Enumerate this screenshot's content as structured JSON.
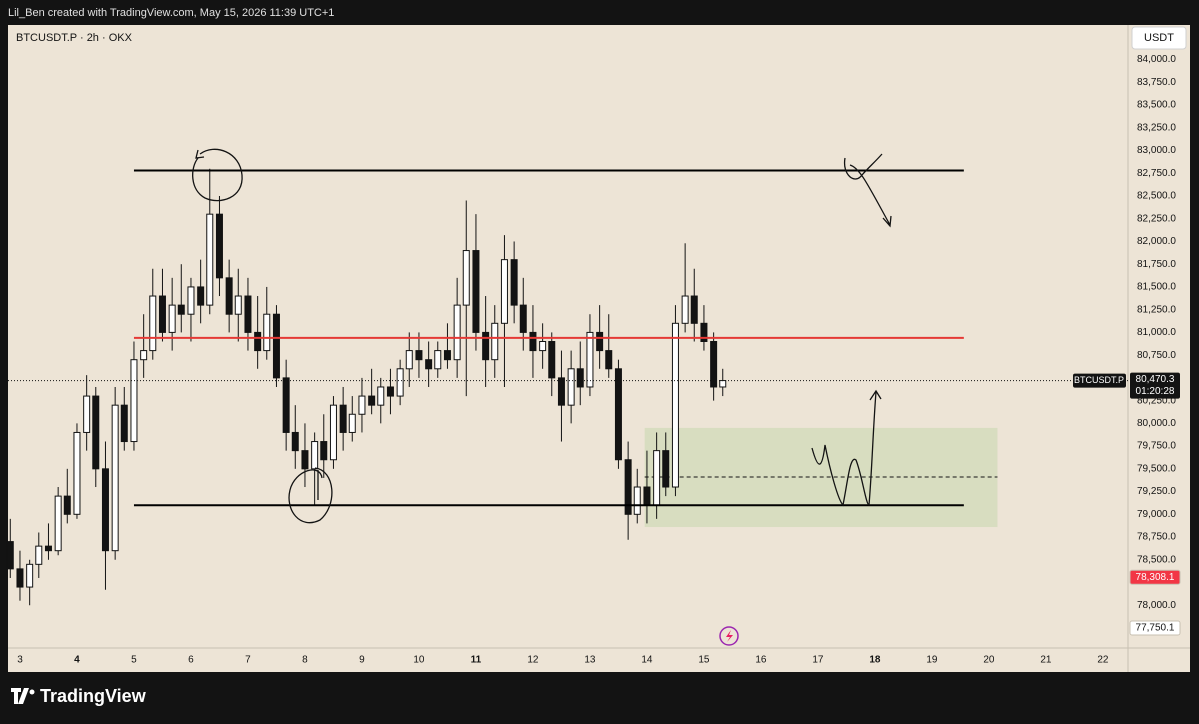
{
  "chart_data": {
    "type": "candlestick",
    "credit": "Lil_Ben created with TradingView.com, May 15, 2026 11:39 UTC+1",
    "symbol_label": "BTCUSDT.P · 2h · OKX",
    "currency": "USDT",
    "brand": "TradingView",
    "up_color": "#ffffff",
    "down_color": "#131313",
    "x": [
      2.83,
      3,
      3.17,
      3.33,
      3.5,
      3.67,
      3.83,
      4,
      4.17,
      4.33,
      4.5,
      4.67,
      4.83,
      5,
      5.17,
      5.33,
      5.5,
      5.67,
      5.83,
      6,
      6.17,
      6.33,
      6.5,
      6.67,
      6.83,
      7,
      7.17,
      7.33,
      7.5,
      7.67,
      7.83,
      8,
      8.17,
      8.33,
      8.5,
      8.67,
      8.83,
      9,
      9.17,
      9.33,
      9.5,
      9.67,
      9.83,
      10,
      10.17,
      10.33,
      10.5,
      10.67,
      10.83,
      11,
      11.17,
      11.33,
      11.5,
      11.67,
      11.83,
      12,
      12.17,
      12.33,
      12.5,
      12.67,
      12.83,
      13,
      13.17,
      13.33,
      13.5,
      13.67,
      13.83,
      14,
      14.17,
      14.33,
      14.5,
      14.67,
      14.83,
      15,
      15.17,
      15.33
    ],
    "open": [
      78700,
      78400,
      78200,
      78450,
      78650,
      78600,
      79200,
      79000,
      79900,
      80300,
      79500,
      78600,
      80200,
      79800,
      80700,
      80800,
      81400,
      81000,
      81300,
      81200,
      81500,
      81300,
      82300,
      81600,
      81200,
      81400,
      81000,
      80800,
      81200,
      80500,
      79900,
      79700,
      79500,
      79800,
      79600,
      80200,
      79900,
      80100,
      80300,
      80200,
      80400,
      80300,
      80600,
      80800,
      80700,
      80600,
      80800,
      80700,
      81300,
      81900,
      81000,
      80700,
      81100,
      81800,
      81300,
      81000,
      80800,
      80900,
      80500,
      80200,
      80600,
      80400,
      81000,
      80800,
      80600,
      79600,
      79000,
      79300,
      79100,
      79700,
      79300,
      81100,
      81400,
      81100,
      80900,
      80400
    ],
    "high": [
      78950,
      78600,
      78500,
      78800,
      78900,
      79300,
      79500,
      80000,
      80530,
      80400,
      79800,
      80400,
      80400,
      80900,
      81200,
      81700,
      81700,
      81600,
      81750,
      81600,
      81800,
      82800,
      82500,
      81800,
      81700,
      81600,
      81400,
      81500,
      81300,
      80700,
      80200,
      80000,
      79900,
      80100,
      80300,
      80400,
      80300,
      80500,
      80600,
      80500,
      80600,
      80700,
      81000,
      81000,
      80900,
      80900,
      81100,
      81600,
      82450,
      82300,
      81400,
      81300,
      82070,
      82000,
      81600,
      81300,
      81100,
      81000,
      80800,
      80800,
      80900,
      81200,
      81300,
      81200,
      80700,
      79800,
      79500,
      79700,
      79900,
      79900,
      81300,
      81980,
      81700,
      81300,
      81000,
      80600
    ],
    "low": [
      78300,
      78050,
      78000,
      78300,
      78500,
      78550,
      78900,
      78950,
      79700,
      79300,
      78170,
      78500,
      79700,
      79700,
      80500,
      80700,
      80900,
      80800,
      81000,
      80900,
      81100,
      81200,
      81400,
      81000,
      80900,
      80800,
      80600,
      80700,
      80400,
      79700,
      79500,
      79300,
      79100,
      79400,
      79500,
      79700,
      79800,
      79900,
      80100,
      80000,
      80100,
      80200,
      80400,
      80500,
      80400,
      80500,
      80600,
      80500,
      80300,
      80800,
      80400,
      80500,
      80400,
      81100,
      80800,
      80500,
      80600,
      80300,
      79800,
      80000,
      80200,
      80300,
      80600,
      80500,
      79500,
      78720,
      78900,
      78900,
      78950,
      79200,
      79200,
      81000,
      80900,
      80800,
      80250,
      80300
    ],
    "close": [
      78400,
      78200,
      78450,
      78650,
      78600,
      79200,
      79000,
      79900,
      80300,
      79500,
      78600,
      80200,
      79800,
      80700,
      80800,
      81400,
      81000,
      81300,
      81200,
      81500,
      81300,
      82300,
      81600,
      81200,
      81400,
      81000,
      80800,
      81200,
      80500,
      79900,
      79700,
      79500,
      79800,
      79600,
      80200,
      79900,
      80100,
      80300,
      80200,
      80400,
      80300,
      80600,
      80800,
      80700,
      80600,
      80800,
      80700,
      81300,
      81900,
      81000,
      80700,
      81100,
      81800,
      81300,
      81000,
      80800,
      80900,
      80500,
      80200,
      80600,
      80400,
      81000,
      80800,
      80600,
      79600,
      79000,
      79300,
      79100,
      79700,
      79300,
      81100,
      81400,
      81100,
      80900,
      80400,
      80470.3
    ],
    "xlim": [
      2.79,
      22.44
    ],
    "xticks": [
      3,
      4,
      5,
      6,
      7,
      8,
      9,
      10,
      11,
      12,
      13,
      14,
      15,
      16,
      17,
      18,
      19,
      20,
      21,
      22
    ],
    "major_xticks": [
      4,
      11,
      18
    ],
    "ylim": [
      77530,
      84380
    ],
    "yticks": [
      {
        "value": 84000,
        "label": "84,000.0"
      },
      {
        "value": 83750,
        "label": "83,750.0"
      },
      {
        "value": 83500,
        "label": "83,500.0"
      },
      {
        "value": 83250,
        "label": "83,250.0"
      },
      {
        "value": 83000,
        "label": "83,000.0"
      },
      {
        "value": 82750,
        "label": "82,750.0"
      },
      {
        "value": 82500,
        "label": "82,500.0"
      },
      {
        "value": 82250,
        "label": "82,250.0"
      },
      {
        "value": 82000,
        "label": "82,000.0"
      },
      {
        "value": 81750,
        "label": "81,750.0"
      },
      {
        "value": 81500,
        "label": "81,500.0"
      },
      {
        "value": 81250,
        "label": "81,250.0"
      },
      {
        "value": 81000,
        "label": "81,000.0"
      },
      {
        "value": 80750,
        "label": "80,750.0"
      },
      {
        "value": 80250,
        "label": "80,250.0"
      },
      {
        "value": 80000,
        "label": "80,000.0"
      },
      {
        "value": 79750,
        "label": "79,750.0"
      },
      {
        "value": 79500,
        "label": "79,500.0"
      },
      {
        "value": 79250,
        "label": "79,250.0"
      },
      {
        "value": 79000,
        "label": "79,000.0"
      },
      {
        "value": 78750,
        "label": "78,750.0"
      },
      {
        "value": 78500,
        "label": "78,500.0"
      },
      {
        "value": 78000,
        "label": "78,000.0"
      }
    ],
    "last_price": {
      "name": "BTCUSDT.P",
      "value": 80470.3,
      "label": "80,470.3",
      "countdown": "01:20:28"
    },
    "price_labels": [
      {
        "value": 78308.1,
        "label": "78,308.1",
        "color": "#f23645"
      },
      {
        "value": 77750.1,
        "label": "77,750.1",
        "color": "#ffffff"
      }
    ],
    "drawings": {
      "lines": [
        {
          "price": 82780,
          "x": [
            5,
            19.56
          ],
          "color": "#000000"
        },
        {
          "price": 80940,
          "x": [
            5,
            19.56
          ],
          "color": "#e53935"
        },
        {
          "price": 79100,
          "x": [
            5,
            19.56
          ],
          "color": "#000000"
        }
      ],
      "zone": {
        "x": [
          13.96,
          20.15
        ],
        "top": 79950,
        "bottom": 78860,
        "mid": 79410,
        "color": "#d3dcbc"
      }
    }
  }
}
